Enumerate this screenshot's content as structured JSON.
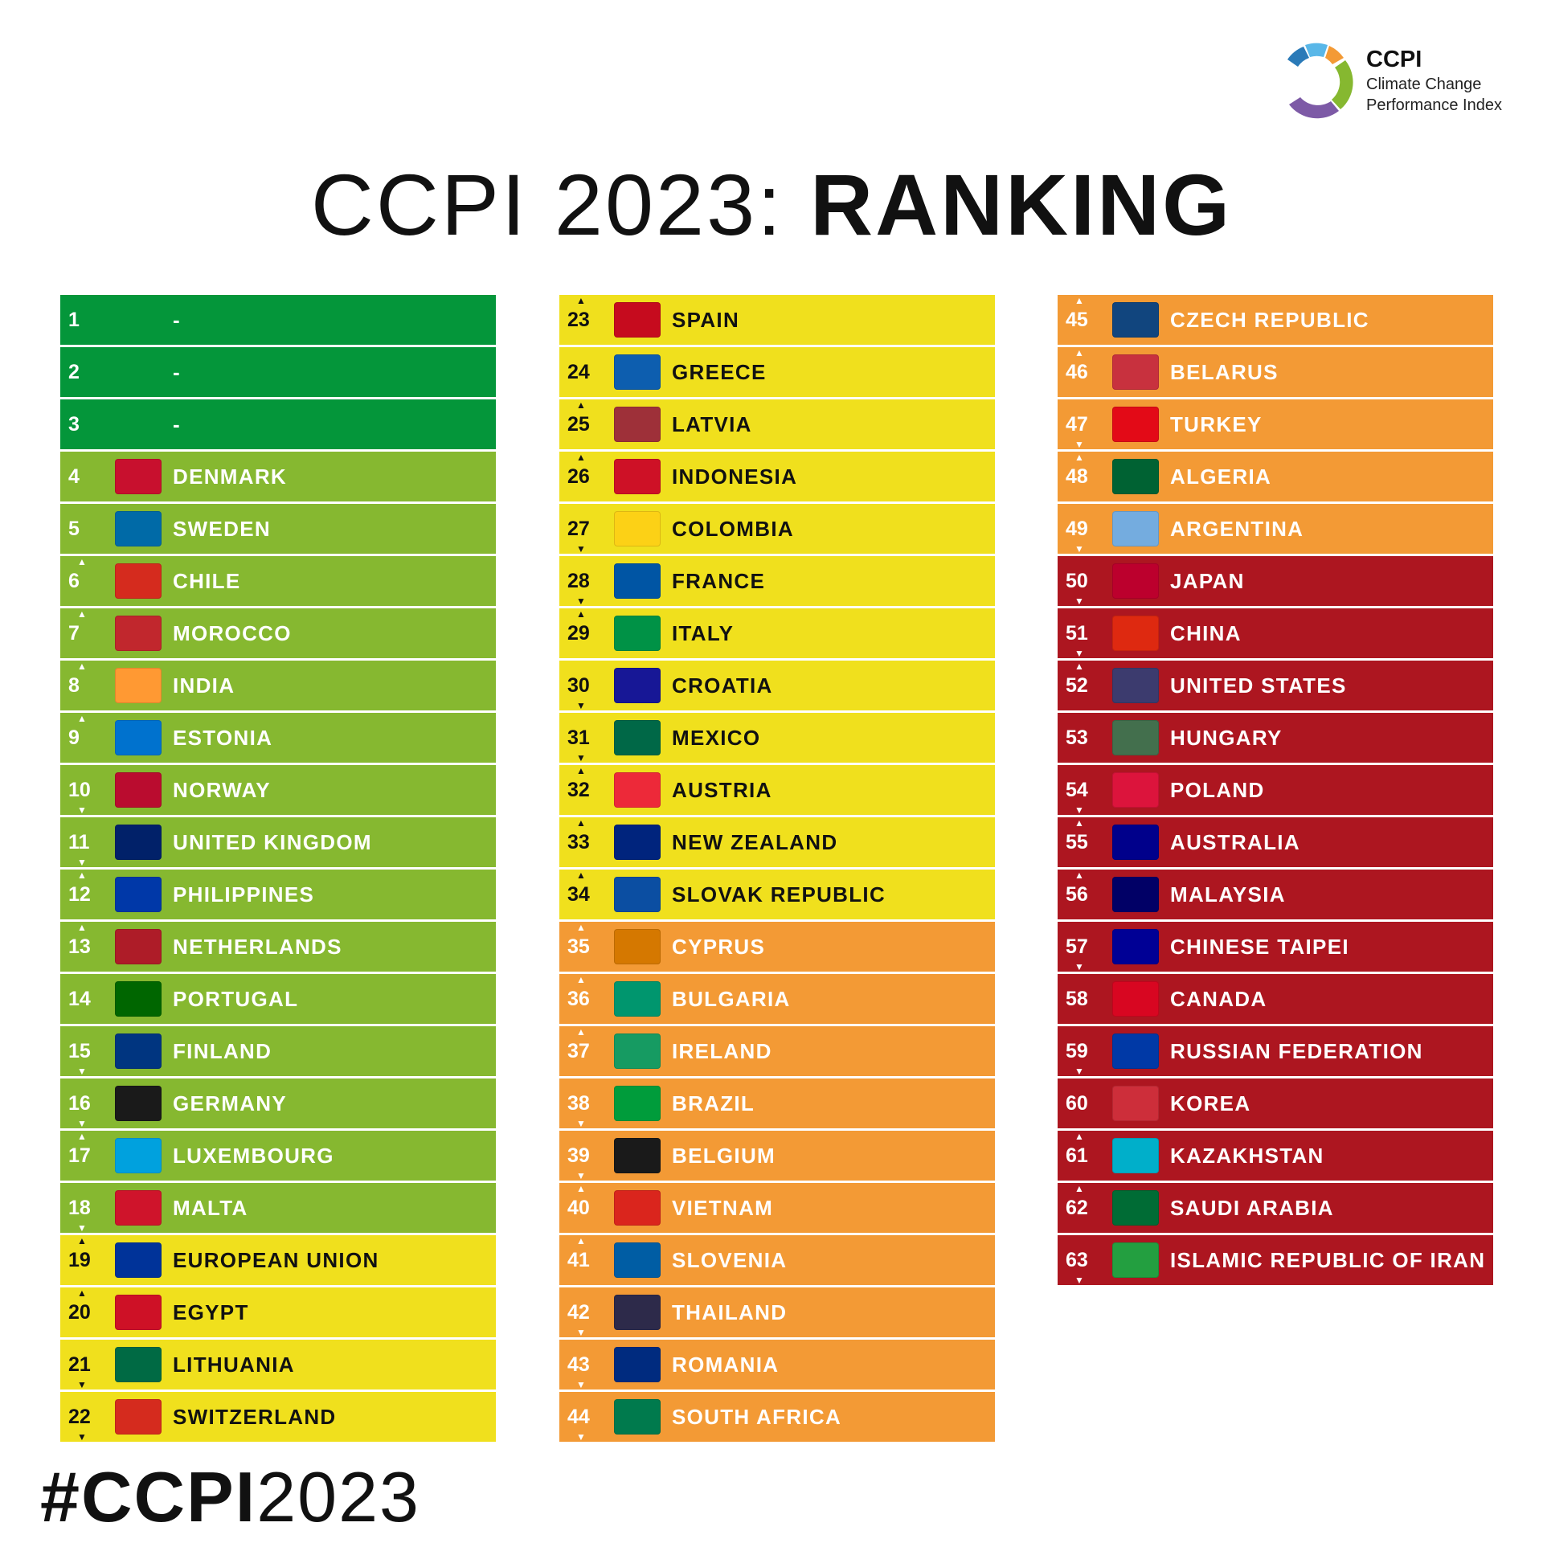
{
  "logo": {
    "title": "CCPI",
    "line1": "Climate Change",
    "line2": "Performance Index"
  },
  "title": {
    "prefix": "CCPI 2023: ",
    "emphasis": "RANKING"
  },
  "hashtag": {
    "bold": "#CCPI",
    "light": "2023"
  },
  "band_colors": {
    "dark-green": "#04963a",
    "light-green": "#86b830",
    "yellow": "#f0e01d",
    "orange": "#f39a35",
    "red": "#ad1620"
  },
  "rankings": [
    {
      "rank": "1",
      "name": "-",
      "band": "dark-green",
      "change": "",
      "flag": ""
    },
    {
      "rank": "2",
      "name": "-",
      "band": "dark-green",
      "change": "",
      "flag": ""
    },
    {
      "rank": "3",
      "name": "-",
      "band": "dark-green",
      "change": "",
      "flag": ""
    },
    {
      "rank": "4",
      "name": "DENMARK",
      "band": "light-green",
      "change": "",
      "flag": "#c8102e"
    },
    {
      "rank": "5",
      "name": "SWEDEN",
      "band": "light-green",
      "change": "",
      "flag": "#006aa7"
    },
    {
      "rank": "6",
      "name": "CHILE",
      "band": "light-green",
      "change": "up",
      "flag": "#d52b1e"
    },
    {
      "rank": "7",
      "name": "MOROCCO",
      "band": "light-green",
      "change": "up",
      "flag": "#c1272d"
    },
    {
      "rank": "8",
      "name": "INDIA",
      "band": "light-green",
      "change": "up",
      "flag": "#ff9933"
    },
    {
      "rank": "9",
      "name": "ESTONIA",
      "band": "light-green",
      "change": "up",
      "flag": "#0072ce"
    },
    {
      "rank": "10",
      "name": "NORWAY",
      "band": "light-green",
      "change": "down",
      "flag": "#ba0c2f"
    },
    {
      "rank": "11",
      "name": "UNITED KINGDOM",
      "band": "light-green",
      "change": "down",
      "flag": "#012169"
    },
    {
      "rank": "12",
      "name": "PHILIPPINES",
      "band": "light-green",
      "change": "up",
      "flag": "#0038a8"
    },
    {
      "rank": "13",
      "name": "NETHERLANDS",
      "band": "light-green",
      "change": "up",
      "flag": "#ae1c28"
    },
    {
      "rank": "14",
      "name": "PORTUGAL",
      "band": "light-green",
      "change": "",
      "flag": "#006600"
    },
    {
      "rank": "15",
      "name": "FINLAND",
      "band": "light-green",
      "change": "down",
      "flag": "#003580"
    },
    {
      "rank": "16",
      "name": "GERMANY",
      "band": "light-green",
      "change": "down",
      "flag": "#1a1a1a"
    },
    {
      "rank": "17",
      "name": "LUXEMBOURG",
      "band": "light-green",
      "change": "up",
      "flag": "#00a1de"
    },
    {
      "rank": "18",
      "name": "MALTA",
      "band": "light-green",
      "change": "down",
      "flag": "#cf142b"
    },
    {
      "rank": "19",
      "name": "EUROPEAN UNION",
      "band": "yellow",
      "change": "up",
      "flag": "#003399"
    },
    {
      "rank": "20",
      "name": "EGYPT",
      "band": "yellow",
      "change": "up",
      "flag": "#ce1126"
    },
    {
      "rank": "21",
      "name": "LITHUANIA",
      "band": "yellow",
      "change": "down",
      "flag": "#006a44"
    },
    {
      "rank": "22",
      "name": "SWITZERLAND",
      "band": "yellow",
      "change": "down",
      "flag": "#d52b1e"
    },
    {
      "rank": "23",
      "name": "SPAIN",
      "band": "yellow",
      "change": "up",
      "flag": "#c60b1e"
    },
    {
      "rank": "24",
      "name": "GREECE",
      "band": "yellow",
      "change": "",
      "flag": "#0d5eaf"
    },
    {
      "rank": "25",
      "name": "LATVIA",
      "band": "yellow",
      "change": "up",
      "flag": "#9e3039"
    },
    {
      "rank": "26",
      "name": "INDONESIA",
      "band": "yellow",
      "change": "up",
      "flag": "#ce1126"
    },
    {
      "rank": "27",
      "name": "COLOMBIA",
      "band": "yellow",
      "change": "down",
      "flag": "#fcd116"
    },
    {
      "rank": "28",
      "name": "FRANCE",
      "band": "yellow",
      "change": "down",
      "flag": "#0055a4"
    },
    {
      "rank": "29",
      "name": "ITALY",
      "band": "yellow",
      "change": "up",
      "flag": "#009246"
    },
    {
      "rank": "30",
      "name": "CROATIA",
      "band": "yellow",
      "change": "down",
      "flag": "#171796"
    },
    {
      "rank": "31",
      "name": "MEXICO",
      "band": "yellow",
      "change": "down",
      "flag": "#006847"
    },
    {
      "rank": "32",
      "name": "AUSTRIA",
      "band": "yellow",
      "change": "up",
      "flag": "#ed2939"
    },
    {
      "rank": "33",
      "name": "NEW ZEALAND",
      "band": "yellow",
      "change": "up",
      "flag": "#00247d"
    },
    {
      "rank": "34",
      "name": "SLOVAK REPUBLIC",
      "band": "yellow",
      "change": "up",
      "flag": "#0b4ea2"
    },
    {
      "rank": "35",
      "name": "CYPRUS",
      "band": "orange",
      "change": "up",
      "flag": "#d57800"
    },
    {
      "rank": "36",
      "name": "BULGARIA",
      "band": "orange",
      "change": "up",
      "flag": "#00966e"
    },
    {
      "rank": "37",
      "name": "IRELAND",
      "band": "orange",
      "change": "up",
      "flag": "#169b62"
    },
    {
      "rank": "38",
      "name": "BRAZIL",
      "band": "orange",
      "change": "down",
      "flag": "#009c3b"
    },
    {
      "rank": "39",
      "name": "BELGIUM",
      "band": "orange",
      "change": "down",
      "flag": "#1a1a1a"
    },
    {
      "rank": "40",
      "name": "VIETNAM",
      "band": "orange",
      "change": "up",
      "flag": "#da251d"
    },
    {
      "rank": "41",
      "name": "SLOVENIA",
      "band": "orange",
      "change": "up",
      "flag": "#005da4"
    },
    {
      "rank": "42",
      "name": "THAILAND",
      "band": "orange",
      "change": "down",
      "flag": "#2d2a4a"
    },
    {
      "rank": "43",
      "name": "ROMANIA",
      "band": "orange",
      "change": "down",
      "flag": "#002b7f"
    },
    {
      "rank": "44",
      "name": "SOUTH AFRICA",
      "band": "orange",
      "change": "down",
      "flag": "#007a4d"
    },
    {
      "rank": "45",
      "name": "CZECH REPUBLIC",
      "band": "orange",
      "change": "up",
      "flag": "#11457e"
    },
    {
      "rank": "46",
      "name": "BELARUS",
      "band": "orange",
      "change": "up",
      "flag": "#c8313e"
    },
    {
      "rank": "47",
      "name": "TURKEY",
      "band": "orange",
      "change": "down",
      "flag": "#e30a17"
    },
    {
      "rank": "48",
      "name": "ALGERIA",
      "band": "orange",
      "change": "up",
      "flag": "#006233"
    },
    {
      "rank": "49",
      "name": "ARGENTINA",
      "band": "orange",
      "change": "down",
      "flag": "#74acdf"
    },
    {
      "rank": "50",
      "name": "JAPAN",
      "band": "red",
      "change": "down",
      "flag": "#bc002d"
    },
    {
      "rank": "51",
      "name": "CHINA",
      "band": "red",
      "change": "down",
      "flag": "#de2910"
    },
    {
      "rank": "52",
      "name": "UNITED STATES",
      "band": "red",
      "change": "up",
      "flag": "#3c3b6e"
    },
    {
      "rank": "53",
      "name": "HUNGARY",
      "band": "red",
      "change": "",
      "flag": "#436f4d"
    },
    {
      "rank": "54",
      "name": "POLAND",
      "band": "red",
      "change": "down",
      "flag": "#dc143c"
    },
    {
      "rank": "55",
      "name": "AUSTRALIA",
      "band": "red",
      "change": "up",
      "flag": "#00008b"
    },
    {
      "rank": "56",
      "name": "MALAYSIA",
      "band": "red",
      "change": "up",
      "flag": "#010066"
    },
    {
      "rank": "57",
      "name": "CHINESE TAIPEI",
      "band": "red",
      "change": "down",
      "flag": "#000095"
    },
    {
      "rank": "58",
      "name": "CANADA",
      "band": "red",
      "change": "",
      "flag": "#d80621"
    },
    {
      "rank": "59",
      "name": "RUSSIAN FEDERATION",
      "band": "red",
      "change": "down",
      "flag": "#0039a6"
    },
    {
      "rank": "60",
      "name": "KOREA",
      "band": "red",
      "change": "",
      "flag": "#cd2e3a"
    },
    {
      "rank": "61",
      "name": "KAZAKHSTAN",
      "band": "red",
      "change": "up",
      "flag": "#00afca"
    },
    {
      "rank": "62",
      "name": "SAUDI ARABIA",
      "band": "red",
      "change": "up",
      "flag": "#006c35"
    },
    {
      "rank": "63",
      "name": "ISLAMIC REPUBLIC OF IRAN",
      "band": "red",
      "change": "down",
      "flag": "#239f40"
    }
  ]
}
